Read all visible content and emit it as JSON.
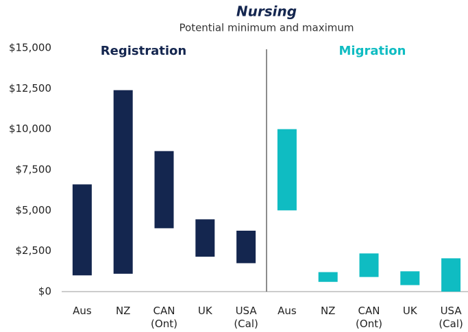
{
  "chart_data": {
    "type": "floating_bar",
    "title": "Nursing",
    "subtitle": "Potential minimum and maximum",
    "ylim": [
      0,
      15000
    ],
    "yticks": [
      {
        "value": 0,
        "label": "$0"
      },
      {
        "value": 2500,
        "label": "$2,500"
      },
      {
        "value": 5000,
        "label": "$5,000"
      },
      {
        "value": 7500,
        "label": "$7,500"
      },
      {
        "value": 10000,
        "label": "$10,000"
      },
      {
        "value": 12500,
        "label": "$12,500"
      },
      {
        "value": 15000,
        "label": "$15,000"
      }
    ],
    "groups": [
      {
        "name": "Registration",
        "color": "#14264f",
        "categories": [
          "Aus",
          "NZ",
          "CAN\n(Ont)",
          "UK",
          "USA\n(Cal)"
        ],
        "low": [
          1000,
          1100,
          3900,
          2150,
          1750
        ],
        "high": [
          6600,
          12400,
          8650,
          4450,
          3750
        ]
      },
      {
        "name": "Migration",
        "color": "#0fbcc2",
        "categories": [
          "Aus",
          "NZ",
          "CAN\n(Ont)",
          "UK",
          "USA\n(Cal)"
        ],
        "low": [
          5000,
          600,
          900,
          400,
          0
        ],
        "high": [
          10000,
          1200,
          2350,
          1250,
          2050
        ]
      }
    ]
  }
}
